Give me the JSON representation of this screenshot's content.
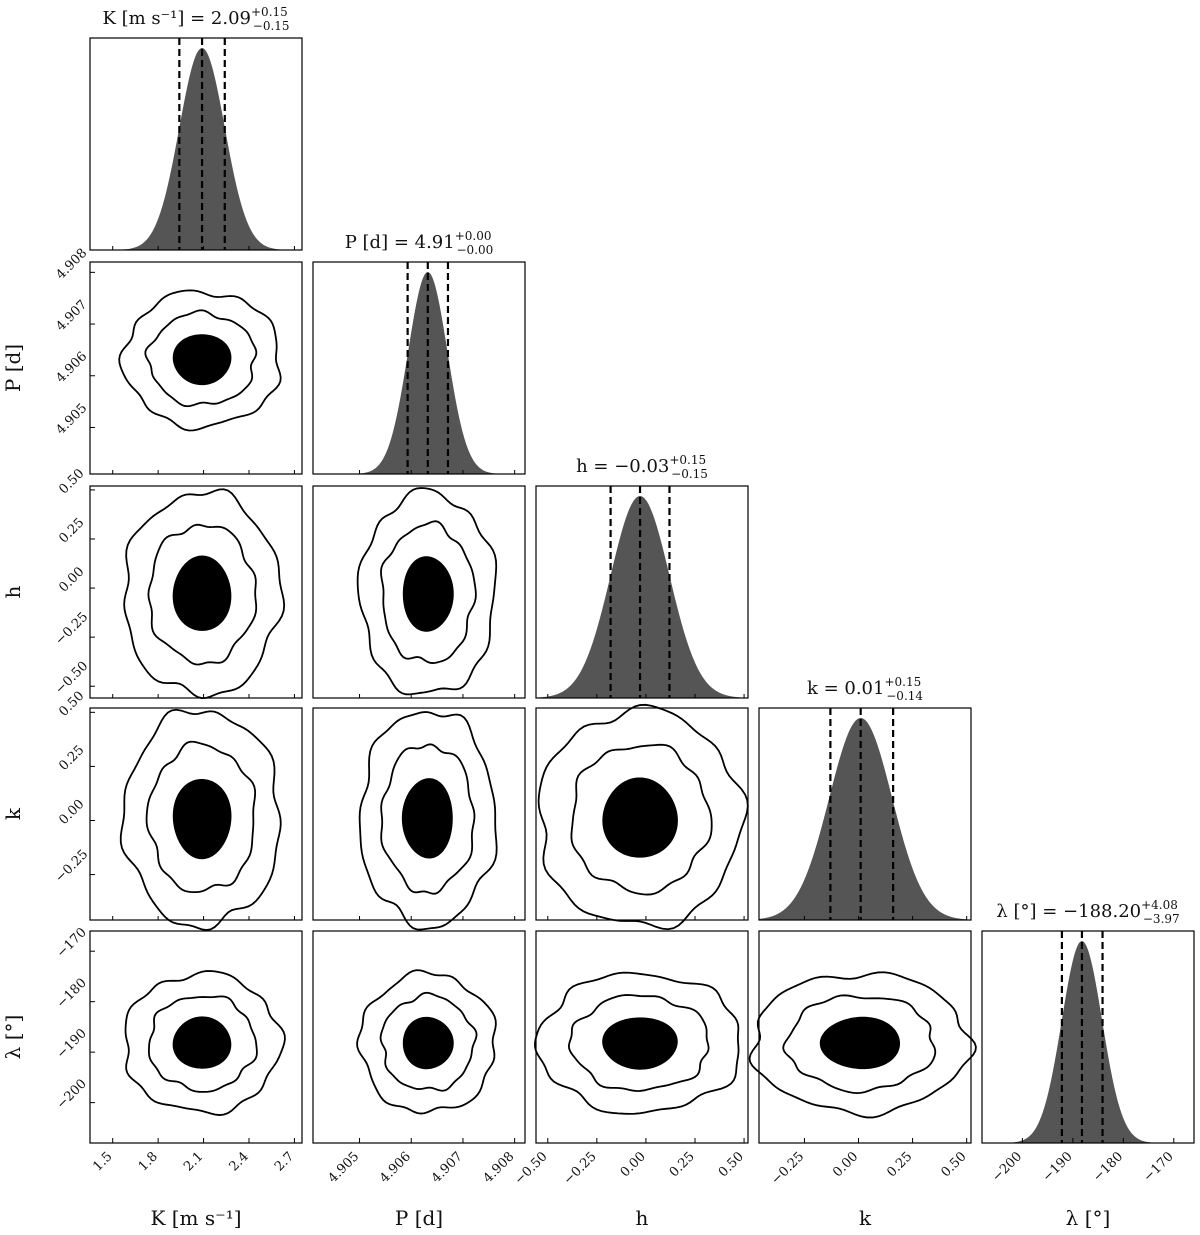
{
  "chart_data": {
    "type": "corner",
    "params": [
      {
        "key": "K",
        "label": "K [m s⁻¹]",
        "title_prefix": "K [m s⁻¹] = ",
        "median": "2.09",
        "plus": "+0.15",
        "minus": "−0.15",
        "mean": 2.09,
        "sigma": 0.15,
        "range": [
          1.35,
          2.75
        ],
        "ticks": [
          1.5,
          1.8,
          2.1,
          2.4,
          2.7
        ],
        "tick_labels": [
          "1.5",
          "1.8",
          "2.1",
          "2.4",
          "2.7"
        ],
        "quantiles": [
          1.94,
          2.09,
          2.24
        ]
      },
      {
        "key": "P",
        "label": "P [d]",
        "title_prefix": "P [d] = ",
        "median": "4.91",
        "plus": "+0.00",
        "minus": "−0.00",
        "mean": 4.90632,
        "sigma": 0.00038,
        "range": [
          4.9041,
          4.9082
        ],
        "ticks": [
          4.905,
          4.906,
          4.907,
          4.908
        ],
        "tick_labels": [
          "4.905",
          "4.906",
          "4.907",
          "4.908"
        ],
        "quantiles": [
          4.90593,
          4.90632,
          4.90671
        ]
      },
      {
        "key": "h",
        "label": "h",
        "title_prefix": "h = ",
        "median": "−0.03",
        "plus": "+0.15",
        "minus": "−0.15",
        "mean": -0.03,
        "sigma": 0.15,
        "range": [
          -0.56,
          0.52
        ],
        "ticks": [
          -0.5,
          -0.25,
          0.0,
          0.25,
          0.5
        ],
        "tick_labels": [
          "−0.50",
          "−0.25",
          "0.00",
          "0.25",
          "0.50"
        ],
        "quantiles": [
          -0.18,
          -0.03,
          0.12
        ]
      },
      {
        "key": "k",
        "label": "k",
        "title_prefix": "k = ",
        "median": "0.01",
        "plus": "+0.15",
        "minus": "−0.14",
        "mean": 0.01,
        "sigma": 0.145,
        "range": [
          -0.46,
          0.52
        ],
        "ticks": [
          -0.25,
          0.0,
          0.25,
          0.5
        ],
        "tick_labels": [
          "−0.25",
          "0.00",
          "0.25",
          "0.50"
        ],
        "quantiles": [
          -0.13,
          0.01,
          0.16
        ]
      },
      {
        "key": "lambda",
        "label": "λ [°]",
        "title_prefix": "λ [°] = ",
        "median": "−188.20",
        "plus": "+4.08",
        "minus": "−3.97",
        "mean": -188.2,
        "sigma": 4.0,
        "range": [
          -208,
          -166
        ],
        "ticks": [
          -200,
          -190,
          -180,
          -170
        ],
        "tick_labels": [
          "−200",
          "−190",
          "−180",
          "−170"
        ],
        "quantiles": [
          -192.17,
          -188.2,
          -184.12
        ]
      }
    ],
    "contour_levels": [
      "1-sigma (filled)",
      "2-sigma",
      "3-sigma"
    ],
    "histogram_fill": "#555555",
    "quantile_line_style": "dashed",
    "grid": false
  }
}
